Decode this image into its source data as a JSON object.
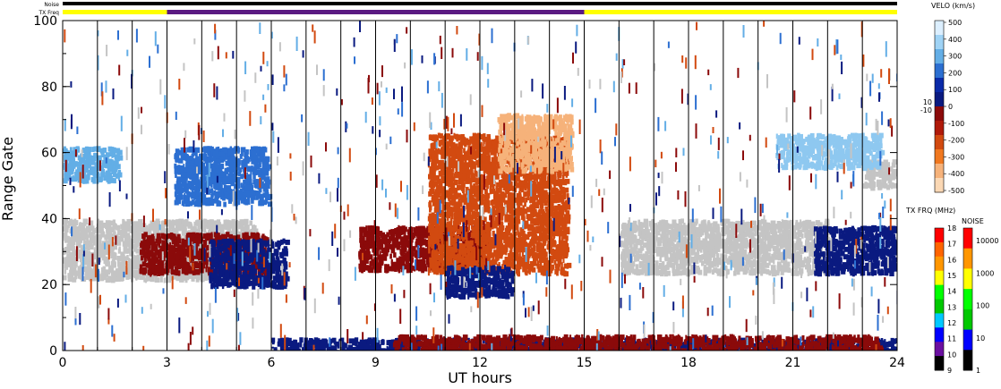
{
  "chart_data": {
    "type": "heatmap",
    "xlabel": "UT hours",
    "ylabel": "Range Gate",
    "x_ticks": [
      "0",
      "3",
      "6",
      "9",
      "12",
      "15",
      "18",
      "21",
      "24"
    ],
    "y_ticks": [
      "0",
      "20",
      "40",
      "60",
      "80",
      "100"
    ],
    "xlim": [
      0,
      24
    ],
    "ylim": [
      0,
      100
    ],
    "status_bars": {
      "noise_label": "Noise",
      "txfreq_label": "TX Freq",
      "txfreq_segments": [
        {
          "start": 0,
          "end": 3,
          "color": "#ffff00"
        },
        {
          "start": 3,
          "end": 15,
          "color": "#5a1a82"
        },
        {
          "start": 15,
          "end": 24,
          "color": "#ffff00"
        }
      ],
      "noise_color": "#000000"
    },
    "scan_boundaries_ut": [
      1,
      2,
      3,
      4,
      5,
      6,
      7,
      8,
      9,
      10,
      11,
      12,
      13,
      14,
      15,
      16,
      17,
      18,
      19,
      20,
      21,
      22,
      23
    ],
    "regions": [
      {
        "name": "ground-scatter-early",
        "x0": 0,
        "x1": 5.5,
        "y0": 22,
        "y1": 40,
        "color": "#c4c4c4"
      },
      {
        "name": "neg-vel-early",
        "x0": 2.2,
        "x1": 5.8,
        "y0": 24,
        "y1": 36,
        "color": "#8b0a0a"
      },
      {
        "name": "pos-vel-early",
        "x0": 4.2,
        "x1": 6.4,
        "y0": 20,
        "y1": 34,
        "color": "#0a1a80"
      },
      {
        "name": "light-blue-early",
        "x0": 0,
        "x1": 1.6,
        "y0": 52,
        "y1": 62,
        "color": "#63aee6"
      },
      {
        "name": "light-blue-3h",
        "x0": 3.2,
        "x1": 5.9,
        "y0": 45,
        "y1": 62,
        "color": "#2c6fd1"
      },
      {
        "name": "morning-neg",
        "x0": 8.5,
        "x1": 12.2,
        "y0": 25,
        "y1": 38,
        "color": "#8b0a0a"
      },
      {
        "name": "midday-orange",
        "x0": 10.5,
        "x1": 14.5,
        "y0": 24,
        "y1": 66,
        "color": "#d24a10"
      },
      {
        "name": "midday-peach",
        "x0": 12.5,
        "x1": 14.6,
        "y0": 55,
        "y1": 72,
        "color": "#f6b27a"
      },
      {
        "name": "midday-blue",
        "x0": 11,
        "x1": 12.9,
        "y0": 17,
        "y1": 26,
        "color": "#0a1a80"
      },
      {
        "name": "evening-gray",
        "x0": 16,
        "x1": 22,
        "y0": 24,
        "y1": 40,
        "color": "#c4c4c4"
      },
      {
        "name": "late-blue",
        "x0": 21.6,
        "x1": 23.9,
        "y0": 24,
        "y1": 38,
        "color": "#0a1a80"
      },
      {
        "name": "late-gray",
        "x0": 23,
        "x1": 23.9,
        "y0": 50,
        "y1": 58,
        "color": "#c4c4c4"
      },
      {
        "name": "late-lightblue",
        "x0": 20.5,
        "x1": 23.5,
        "y0": 56,
        "y1": 66,
        "color": "#8ec8f0"
      },
      {
        "name": "near-range-blue",
        "x0": 6,
        "x1": 24,
        "y0": 0,
        "y1": 4,
        "color": "#0a1a80"
      },
      {
        "name": "near-range-red",
        "x0": 9.5,
        "x1": 23.5,
        "y0": 0,
        "y1": 5,
        "color": "#8b0a0a"
      }
    ],
    "velocity_colorbar": {
      "title": "VELO (km/s)",
      "labels": [
        "500",
        "400",
        "300",
        "200",
        "100",
        "0",
        "-100",
        "-200",
        "-300",
        "-400",
        "-500"
      ],
      "extra_labels": [
        "10",
        "-10"
      ],
      "colors": [
        "#dcefff",
        "#9fd3f5",
        "#63aee6",
        "#2c6fd1",
        "#0a2aa8",
        "#0a1a80",
        "#8b0a0a",
        "#b01a0a",
        "#d24a10",
        "#f07820",
        "#f6b27a",
        "#fbd8b4"
      ]
    },
    "txfrq_colorbar": {
      "title": "TX FRQ (MHz)",
      "labels": [
        "18",
        "17",
        "16",
        "15",
        "14",
        "13",
        "12",
        "11",
        "10",
        "9"
      ],
      "colors": [
        "#ff0000",
        "#ff6400",
        "#ff9600",
        "#ffff00",
        "#00ff00",
        "#00c800",
        "#00c8ff",
        "#0000ff",
        "#6a0fa0",
        "#000000"
      ]
    },
    "noise_colorbar": {
      "title": "NOISE",
      "labels": [
        "10000",
        "1000",
        "100",
        "10",
        "1"
      ],
      "colors": [
        "#ff0000",
        "#ff9600",
        "#ffff00",
        "#00ff00",
        "#00c800",
        "#0000ff",
        "#000000"
      ]
    }
  }
}
